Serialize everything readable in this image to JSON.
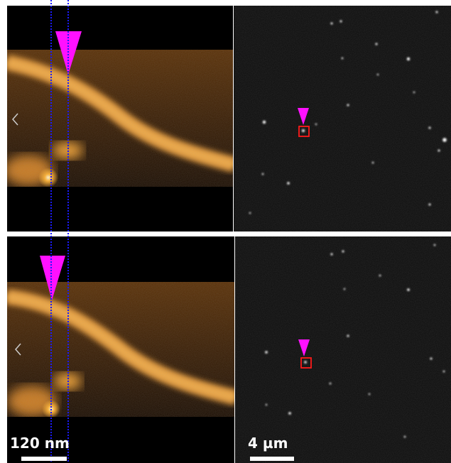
{
  "scale_bars": {
    "afm_label": "120 nm",
    "fluorescence_label": "4 µm"
  },
  "colors": {
    "afm_dark": "#1a0c00",
    "afm_mid": "#6a3808",
    "afm_bright": "#f2a43a",
    "marker": "#ff10ff",
    "guide_line": "#1a1aff",
    "roi_box": "#ff1a1a",
    "fluorescence_bg": "#0d0d0d",
    "divider": "#ffffff"
  },
  "panels": [
    {
      "name": "top-row"
    },
    {
      "name": "bottom-row"
    }
  ]
}
